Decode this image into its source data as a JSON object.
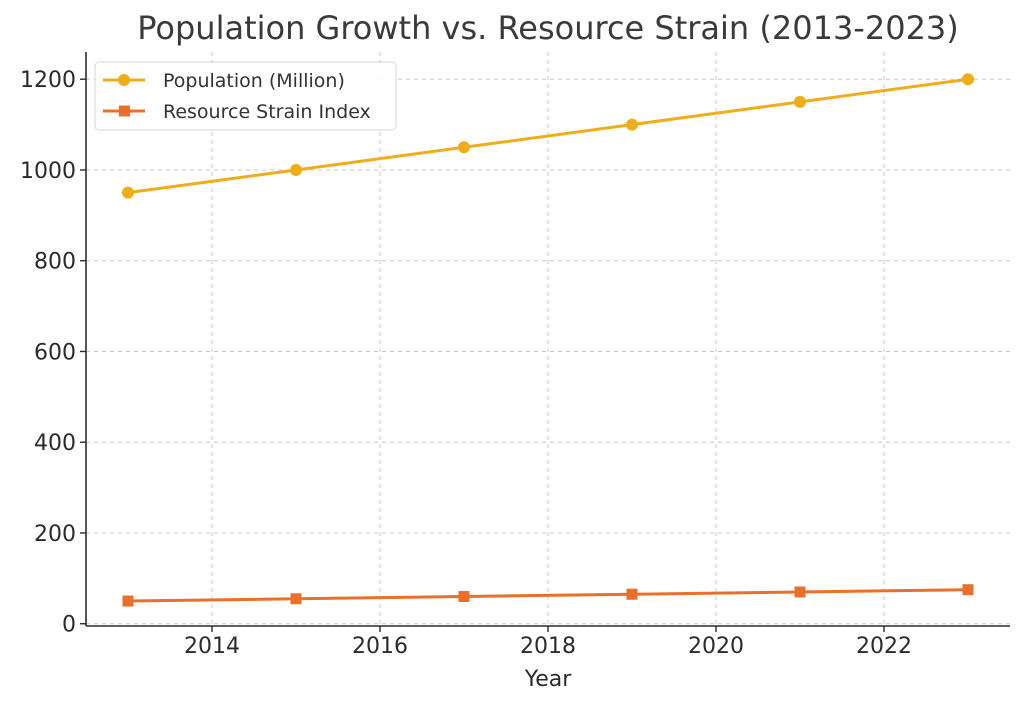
{
  "chart_data": {
    "type": "line",
    "title": "Population Growth vs. Resource Strain (2013-2023)",
    "xlabel": "Year",
    "ylabel": "",
    "xlim": [
      2012.5,
      2023.5
    ],
    "ylim": [
      -5,
      1260
    ],
    "x_ticks": [
      2014,
      2016,
      2018,
      2020,
      2022
    ],
    "y_ticks": [
      0,
      200,
      400,
      600,
      800,
      1000,
      1200
    ],
    "grid": true,
    "legend_position": "top-left",
    "x": [
      2013,
      2015,
      2017,
      2019,
      2021,
      2023
    ],
    "series": [
      {
        "name": "Population (Million)",
        "values": [
          950,
          1000,
          1050,
          1100,
          1150,
          1200
        ],
        "color": "#f0ad1a",
        "marker": "circle"
      },
      {
        "name": "Resource Strain Index",
        "values": [
          50,
          55,
          60,
          65,
          70,
          75
        ],
        "color": "#e8702a",
        "marker": "square"
      }
    ]
  }
}
